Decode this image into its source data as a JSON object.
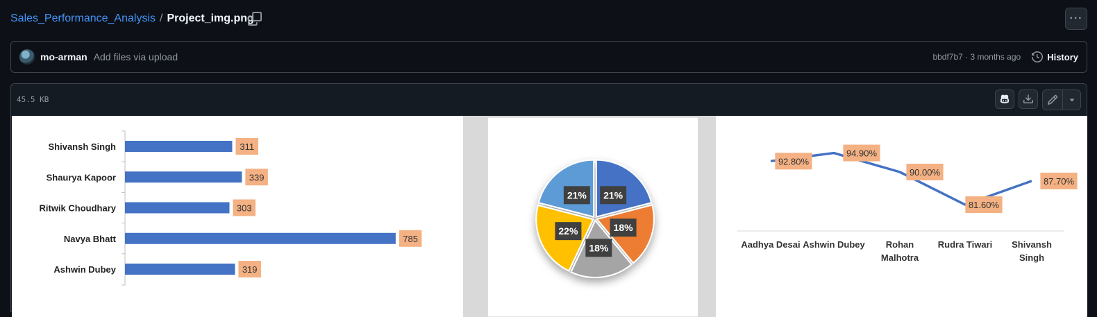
{
  "breadcrumb": {
    "repo": "Sales_Performance_Analysis",
    "separator": "/",
    "file": "Project_img.png"
  },
  "commit": {
    "author": "mo-arman",
    "message": "Add files via upload",
    "sha_time": "bbdf7b7 · 3 months ago",
    "history_label": "History"
  },
  "file": {
    "size": "45.5 KB"
  },
  "icons": {
    "copy": "copy-icon",
    "more": "kebab-icon",
    "history": "history-icon",
    "copilot": "copilot-icon",
    "download": "download-icon",
    "edit": "pencil-icon",
    "dropdown": "chevron-down-icon"
  },
  "colors": {
    "link": "#4493f8",
    "bar": "#4472c4",
    "label_bg": "#f4b183",
    "pie": [
      "#4472c4",
      "#ed7d31",
      "#a5a5a5",
      "#ffc000",
      "#5b9bd5"
    ]
  },
  "chart_data": [
    {
      "type": "bar",
      "orientation": "horizontal",
      "categories": [
        "Shivansh Singh",
        "Shaurya Kapoor",
        "Ritwik Choudhary",
        "Navya Bhatt",
        "Ashwin Dubey"
      ],
      "values": [
        311,
        339,
        303,
        785,
        319
      ],
      "data_labels": [
        "311",
        "339",
        "303",
        "785",
        "319"
      ],
      "xlim": [
        0,
        900
      ]
    },
    {
      "type": "pie",
      "values": [
        21,
        18,
        18,
        22,
        21
      ],
      "data_labels": [
        "21%",
        "18%",
        "18%",
        "22%",
        "21%"
      ]
    },
    {
      "type": "line",
      "categories": [
        "Aadhya Desai",
        "Ashwin Dubey",
        "Rohan Malhotra",
        "Rudra Tiwari",
        "Shivansh Singh"
      ],
      "values": [
        92.8,
        94.9,
        90.0,
        81.6,
        87.7
      ],
      "data_labels": [
        "92.80%",
        "94.90%",
        "90.00%",
        "81.60%",
        "87.70%"
      ],
      "ylim": [
        75,
        100
      ]
    }
  ]
}
